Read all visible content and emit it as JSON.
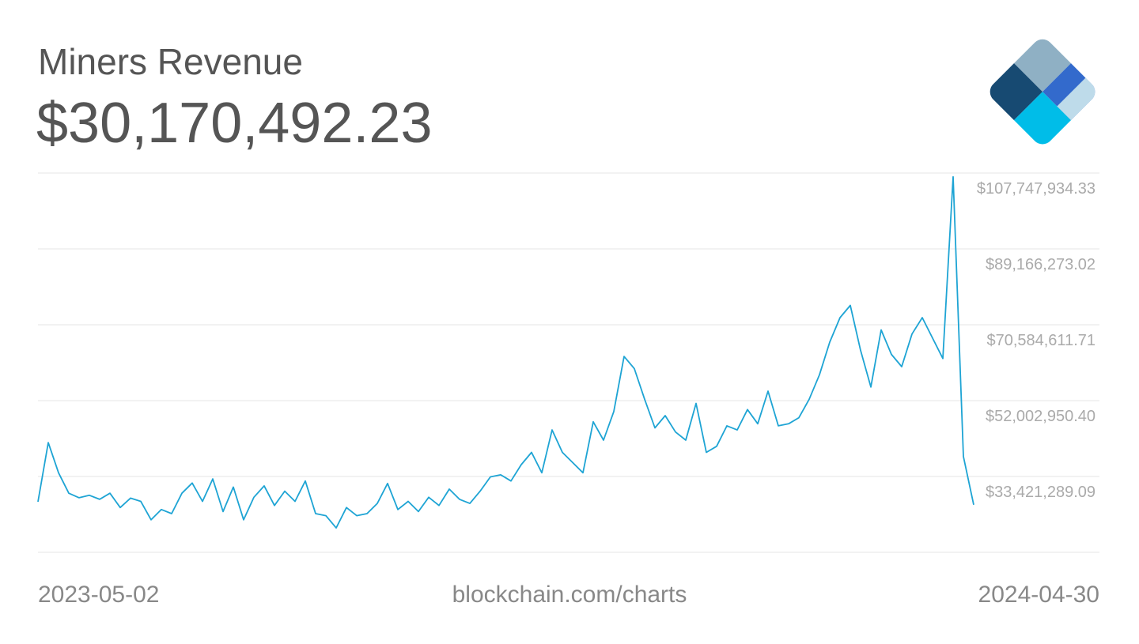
{
  "chart_data": {
    "type": "line",
    "title": "Miners Revenue",
    "headline_value": "$30,170,492.23",
    "source": "blockchain.com/charts",
    "categories": [
      "2023-05-02",
      null,
      null,
      null,
      null,
      null,
      null,
      null,
      null,
      null,
      null,
      null,
      null,
      null,
      null,
      null,
      null,
      null,
      null,
      null,
      null,
      null,
      null,
      null,
      null,
      null,
      null,
      null,
      null,
      null,
      null,
      null,
      null,
      null,
      null,
      null,
      null,
      null,
      null,
      null,
      null,
      null,
      null,
      null,
      null,
      null,
      null,
      null,
      null,
      null,
      null,
      null,
      null,
      null,
      null,
      null,
      null,
      null,
      null,
      null,
      null,
      null,
      null,
      null,
      null,
      null,
      null,
      null,
      null,
      null,
      null,
      null,
      null,
      null,
      null,
      null,
      null,
      null,
      null,
      null,
      null,
      null,
      null,
      null,
      null,
      null,
      null,
      null,
      null,
      null,
      null,
      "2024-04-30"
    ],
    "values": [
      30900000,
      45400000,
      38000000,
      33000000,
      31900000,
      32500000,
      31500000,
      33000000,
      29500000,
      31800000,
      31000000,
      26500000,
      29000000,
      28000000,
      33000000,
      35500000,
      31000000,
      36500000,
      28500000,
      34500000,
      26500000,
      32000000,
      34800000,
      30000000,
      33500000,
      31000000,
      36000000,
      28000000,
      27500000,
      24500000,
      29500000,
      27500000,
      28000000,
      30500000,
      35400000,
      29000000,
      31000000,
      28500000,
      32000000,
      30000000,
      34000000,
      31500000,
      30500000,
      33500000,
      37000000,
      37500000,
      36000000,
      40000000,
      43000000,
      38000000,
      48500000,
      43000000,
      40500000,
      38000000,
      50500000,
      46000000,
      53000000,
      66500000,
      63500000,
      56000000,
      49000000,
      52000000,
      48000000,
      46000000,
      55000000,
      43000000,
      44500000,
      49500000,
      48500000,
      53500000,
      50000000,
      58000000,
      49500000,
      50000000,
      51500000,
      56000000,
      62000000,
      70000000,
      76000000,
      79000000,
      68000000,
      59000000,
      73000000,
      67000000,
      64000000,
      72000000,
      76000000,
      71000000,
      66000000,
      110500000,
      42000000,
      30170492.23
    ],
    "color": "#1ea4d4",
    "ylim": [
      18517000,
      111425000
    ],
    "yticks": [
      {
        "value": 33421289.09,
        "label": "$33,421,289.09"
      },
      {
        "value": 52002950.4,
        "label": "$52,002,950.40"
      },
      {
        "value": 70584611.71,
        "label": "$70,584,611.71"
      },
      {
        "value": 89166273.02,
        "label": "$89,166,273.02"
      },
      {
        "value": 107747934.33,
        "label": "$107,747,934.33"
      }
    ],
    "grid": true
  }
}
